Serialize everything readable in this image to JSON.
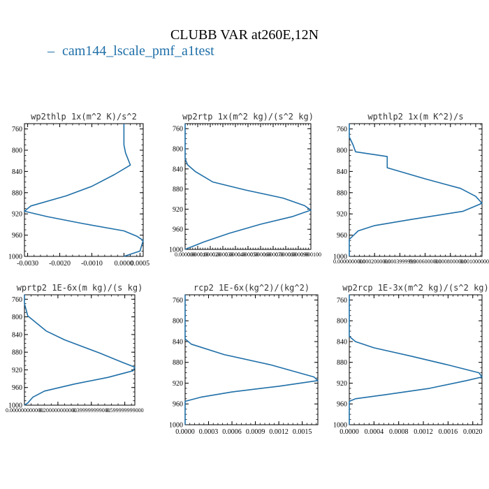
{
  "figure": {
    "title": "CLUBB VAR at260E,12N",
    "legend_label": "cam144_lscale_pmf_a1test",
    "line_color": "#1f6fa8"
  },
  "chart_data": [
    {
      "type": "line",
      "title": "wp2thlp  1x(m^2 K)/s^2",
      "xlim": [
        -0.0031,
        0.0006
      ],
      "ylim": [
        1000,
        750
      ],
      "xticks": [
        -0.003,
        -0.002,
        -0.001,
        0.0,
        0.0005
      ],
      "xtick_labels": [
        "-0.0030",
        "-0.0020",
        "-0.0010",
        "0.0000",
        "0.0005"
      ],
      "yticks": [
        760,
        800,
        840,
        880,
        920,
        960,
        1000
      ],
      "series": [
        {
          "points": [
            [
              0.0,
              750
            ],
            [
              0.0,
              790
            ],
            [
              5e-05,
              805
            ],
            [
              0.0002,
              828
            ],
            [
              -0.0003,
              846
            ],
            [
              -0.001,
              868
            ],
            [
              -0.0018,
              886
            ],
            [
              -0.0029,
              905
            ],
            [
              -0.0031,
              915
            ],
            [
              -0.0024,
              925
            ],
            [
              -0.0013,
              938
            ],
            [
              0.0,
              952
            ],
            [
              0.0004,
              962
            ],
            [
              0.0006,
              970
            ],
            [
              0.0005,
              990
            ],
            [
              0.0,
              1000
            ]
          ]
        }
      ]
    },
    {
      "type": "line",
      "title": "wp2rtp  1x(m^2 kg)/(s^2 kg)",
      "xlim": [
        0.0,
        0.0001
      ],
      "ylim": [
        1000,
        750
      ],
      "xticks": [
        0.0,
        1e-05,
        2e-05,
        3e-05,
        4e-05,
        5e-05,
        6e-05,
        7e-05,
        8e-05,
        9e-05,
        0.0001
      ],
      "xtick_labels": [
        "0.000000",
        "0.000010",
        "0.000020",
        "0.000030",
        "0.000040",
        "0.000050",
        "0.000060",
        "0.000070",
        "0.000080",
        "0.000090",
        "0.000100"
      ],
      "yticks": [
        760,
        800,
        840,
        880,
        920,
        960,
        1000
      ],
      "series": [
        {
          "points": [
            [
              0.0,
              750
            ],
            [
              0.0,
              800
            ],
            [
              0.0,
              820
            ],
            [
              2e-06,
              832
            ],
            [
              8e-06,
              845
            ],
            [
              2.2e-05,
              866
            ],
            [
              4.8e-05,
              882
            ],
            [
              7.8e-05,
              898
            ],
            [
              9.5e-05,
              913
            ],
            [
              0.0001,
              922
            ],
            [
              8.5e-05,
              935
            ],
            [
              6e-05,
              950
            ],
            [
              3.5e-05,
              968
            ],
            [
              1.5e-05,
              985
            ],
            [
              0.0,
              1000
            ]
          ]
        }
      ]
    },
    {
      "type": "line",
      "title": "wpthlp2  1x(m K^2)/s",
      "xlim": [
        0.0,
        0.00105
      ],
      "ylim": [
        1000,
        750
      ],
      "xticks": [
        0.0,
        0.0002,
        0.0004,
        0.0006,
        0.0008,
        0.001
      ],
      "xtick_labels": [
        "0.0000000000",
        "0.0002000000",
        "0.0003999999",
        "0.0006000000",
        "0.0008000000",
        "0.0010000000"
      ],
      "yticks": [
        760,
        800,
        840,
        880,
        920,
        960,
        1000
      ],
      "series": [
        {
          "points": [
            [
              0.0,
              750
            ],
            [
              0.0,
              775
            ],
            [
              3e-05,
              790
            ],
            [
              5e-05,
              803
            ],
            [
              0.0003,
              812
            ],
            [
              0.0003,
              833
            ],
            [
              0.0006,
              854
            ],
            [
              0.00088,
              872
            ],
            [
              0.001,
              887
            ],
            [
              0.00105,
              900
            ],
            [
              0.0009,
              915
            ],
            [
              0.0005,
              930
            ],
            [
              0.0002,
              942
            ],
            [
              7e-05,
              952
            ],
            [
              0.0,
              968
            ],
            [
              0.0,
              1000
            ]
          ]
        }
      ]
    },
    {
      "type": "line",
      "title": "wprtp2  1E-6x(m kg)/(s kg)",
      "xlim": [
        0.0,
        0.66
      ],
      "ylim": [
        1000,
        750
      ],
      "xticks": [
        0.0,
        0.2,
        0.4,
        0.6
      ],
      "xtick_labels": [
        "0.000000000000",
        "0.200000000000",
        "0.399999999000",
        "0.599999999000"
      ],
      "yticks": [
        760,
        800,
        840,
        880,
        920,
        960,
        1000
      ],
      "series": [
        {
          "points": [
            [
              0.0,
              750
            ],
            [
              0.0,
              770
            ],
            [
              0.02,
              798
            ],
            [
              0.13,
              832
            ],
            [
              0.24,
              852
            ],
            [
              0.45,
              882
            ],
            [
              0.58,
              902
            ],
            [
              0.66,
              914
            ],
            [
              0.65,
              922
            ],
            [
              0.5,
              937
            ],
            [
              0.3,
              952
            ],
            [
              0.12,
              968
            ],
            [
              0.05,
              982
            ],
            [
              0.02,
              995
            ],
            [
              0.0,
              1000
            ]
          ]
        }
      ]
    },
    {
      "type": "line",
      "title": "rcp2  1E-6x(kg^2)/(kg^2)",
      "xlim": [
        0.0,
        0.0017
      ],
      "ylim": [
        1000,
        750
      ],
      "xticks": [
        0.0,
        0.0003,
        0.0006,
        0.0009,
        0.0012,
        0.0015
      ],
      "xtick_labels": [
        "0.0000",
        "0.0003",
        "0.0006",
        "0.0009",
        "0.0012",
        "0.0015"
      ],
      "yticks": [
        760,
        800,
        840,
        880,
        920,
        960,
        1000
      ],
      "series": [
        {
          "points": [
            [
              0.0,
              750
            ],
            [
              0.0,
              820
            ],
            [
              0.0,
              835
            ],
            [
              8e-05,
              845
            ],
            [
              0.0005,
              865
            ],
            [
              0.0011,
              885
            ],
            [
              0.00165,
              908
            ],
            [
              0.0017,
              915
            ],
            [
              0.0012,
              926
            ],
            [
              0.0006,
              937
            ],
            [
              0.0002,
              947
            ],
            [
              0.0,
              955
            ],
            [
              0.0,
              1000
            ]
          ]
        }
      ]
    },
    {
      "type": "line",
      "title": "wp2rcp  1E-3x(m^2 kg)/(s^2 kg)",
      "xlim": [
        0.0,
        0.00215
      ],
      "ylim": [
        1000,
        750
      ],
      "xticks": [
        0.0,
        0.0004,
        0.0008,
        0.0012,
        0.0016,
        0.002
      ],
      "xtick_labels": [
        "0.0000",
        "0.0004",
        "0.0008",
        "0.0012",
        "0.0016",
        "0.0020"
      ],
      "yticks": [
        760,
        800,
        840,
        880,
        920,
        960,
        1000
      ],
      "series": [
        {
          "points": [
            [
              0.0,
              750
            ],
            [
              0.0,
              830
            ],
            [
              0.0001,
              840
            ],
            [
              0.0004,
              852
            ],
            [
              0.001,
              868
            ],
            [
              0.0016,
              885
            ],
            [
              0.0021,
              900
            ],
            [
              0.00215,
              908
            ],
            [
              0.0019,
              915
            ],
            [
              0.0013,
              930
            ],
            [
              0.0006,
              942
            ],
            [
              0.0001,
              950
            ],
            [
              0.0,
              955
            ],
            [
              0.0,
              1000
            ]
          ]
        }
      ]
    }
  ]
}
